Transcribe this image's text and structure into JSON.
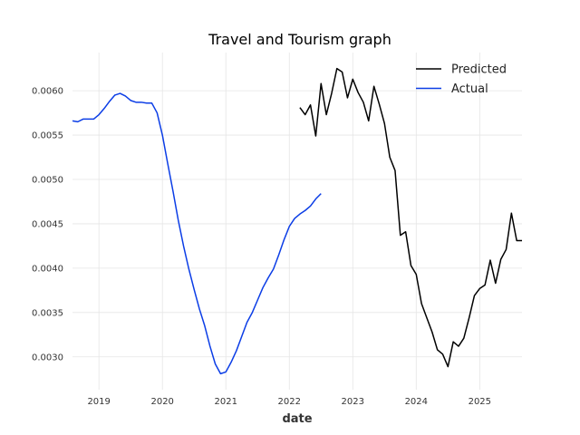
{
  "chart_data": {
    "type": "line",
    "title": "Travel and Tourism graph",
    "xlabel": "date",
    "ylabel": "",
    "xlim": [
      "2018-08-01",
      "2025-09-01"
    ],
    "ylim": [
      0.00263,
      0.00643
    ],
    "grid": true,
    "legend_position": "top-right",
    "x_ticks": [
      "2019",
      "2020",
      "2021",
      "2022",
      "2023",
      "2024",
      "2025"
    ],
    "y_ticks": [
      "0.0030",
      "0.0035",
      "0.0040",
      "0.0045",
      "0.0050",
      "0.0055",
      "0.0060"
    ],
    "y_tick_values": [
      0.003,
      0.0035,
      0.004,
      0.0045,
      0.005,
      0.0055,
      0.006
    ],
    "series": [
      {
        "name": "Predicted",
        "color": "#000000",
        "x": [
          "2022-03-01",
          "2022-04-01",
          "2022-05-01",
          "2022-06-01",
          "2022-07-01",
          "2022-08-01",
          "2022-09-01",
          "2022-10-01",
          "2022-11-01",
          "2022-12-01",
          "2023-01-01",
          "2023-02-01",
          "2023-03-01",
          "2023-04-01",
          "2023-05-01",
          "2023-06-01",
          "2023-07-01",
          "2023-08-01",
          "2023-09-01",
          "2023-10-01",
          "2023-11-01",
          "2023-12-01",
          "2024-01-01",
          "2024-02-01",
          "2024-03-01",
          "2024-04-01",
          "2024-05-01",
          "2024-06-01",
          "2024-07-01",
          "2024-08-01",
          "2024-09-01",
          "2024-10-01",
          "2024-11-01",
          "2024-12-01",
          "2025-01-01",
          "2025-02-01",
          "2025-03-01",
          "2025-04-01",
          "2025-05-01",
          "2025-06-01",
          "2025-07-01",
          "2025-08-01",
          "2025-09-01"
        ],
        "values": [
          0.00581,
          0.00573,
          0.00584,
          0.00549,
          0.00608,
          0.00573,
          0.00597,
          0.00625,
          0.00621,
          0.00592,
          0.00613,
          0.00598,
          0.00587,
          0.00566,
          0.00605,
          0.00585,
          0.00563,
          0.00525,
          0.0051,
          0.00437,
          0.00441,
          0.00403,
          0.00393,
          0.0036,
          0.00344,
          0.00328,
          0.00308,
          0.00303,
          0.00289,
          0.00317,
          0.00312,
          0.00321,
          0.00344,
          0.00369,
          0.00377,
          0.00381,
          0.00409,
          0.00383,
          0.0041,
          0.00421,
          0.00462,
          0.00431,
          0.00431
        ]
      },
      {
        "name": "Actual",
        "color": "#0b3de6",
        "x": [
          "2018-08-01",
          "2018-09-01",
          "2018-10-01",
          "2018-11-01",
          "2018-12-01",
          "2019-01-01",
          "2019-02-01",
          "2019-03-01",
          "2019-04-01",
          "2019-05-01",
          "2019-06-01",
          "2019-07-01",
          "2019-08-01",
          "2019-09-01",
          "2019-10-01",
          "2019-11-01",
          "2019-12-01",
          "2020-01-01",
          "2020-02-01",
          "2020-03-01",
          "2020-04-01",
          "2020-05-01",
          "2020-06-01",
          "2020-07-01",
          "2020-08-01",
          "2020-09-01",
          "2020-10-01",
          "2020-11-01",
          "2020-12-01",
          "2021-01-01",
          "2021-02-01",
          "2021-03-01",
          "2021-04-01",
          "2021-05-01",
          "2021-06-01",
          "2021-07-01",
          "2021-08-01",
          "2021-09-01",
          "2021-10-01",
          "2021-11-01",
          "2021-12-01",
          "2022-01-01",
          "2022-02-01",
          "2022-03-01",
          "2022-04-01",
          "2022-05-01",
          "2022-06-01",
          "2022-07-01"
        ],
        "values": [
          0.00566,
          0.00565,
          0.00568,
          0.00568,
          0.00568,
          0.00573,
          0.0058,
          0.00588,
          0.00595,
          0.00597,
          0.00594,
          0.00589,
          0.00587,
          0.00587,
          0.00586,
          0.00586,
          0.00575,
          0.0055,
          0.00518,
          0.00487,
          0.00454,
          0.00425,
          0.00399,
          0.00376,
          0.00354,
          0.00335,
          0.00312,
          0.00292,
          0.00281,
          0.00283,
          0.00294,
          0.00307,
          0.00323,
          0.00339,
          0.0035,
          0.00364,
          0.00378,
          0.00389,
          0.00399,
          0.00415,
          0.00432,
          0.00447,
          0.00456,
          0.00461,
          0.00465,
          0.0047,
          0.00478,
          0.00484
        ]
      }
    ]
  }
}
